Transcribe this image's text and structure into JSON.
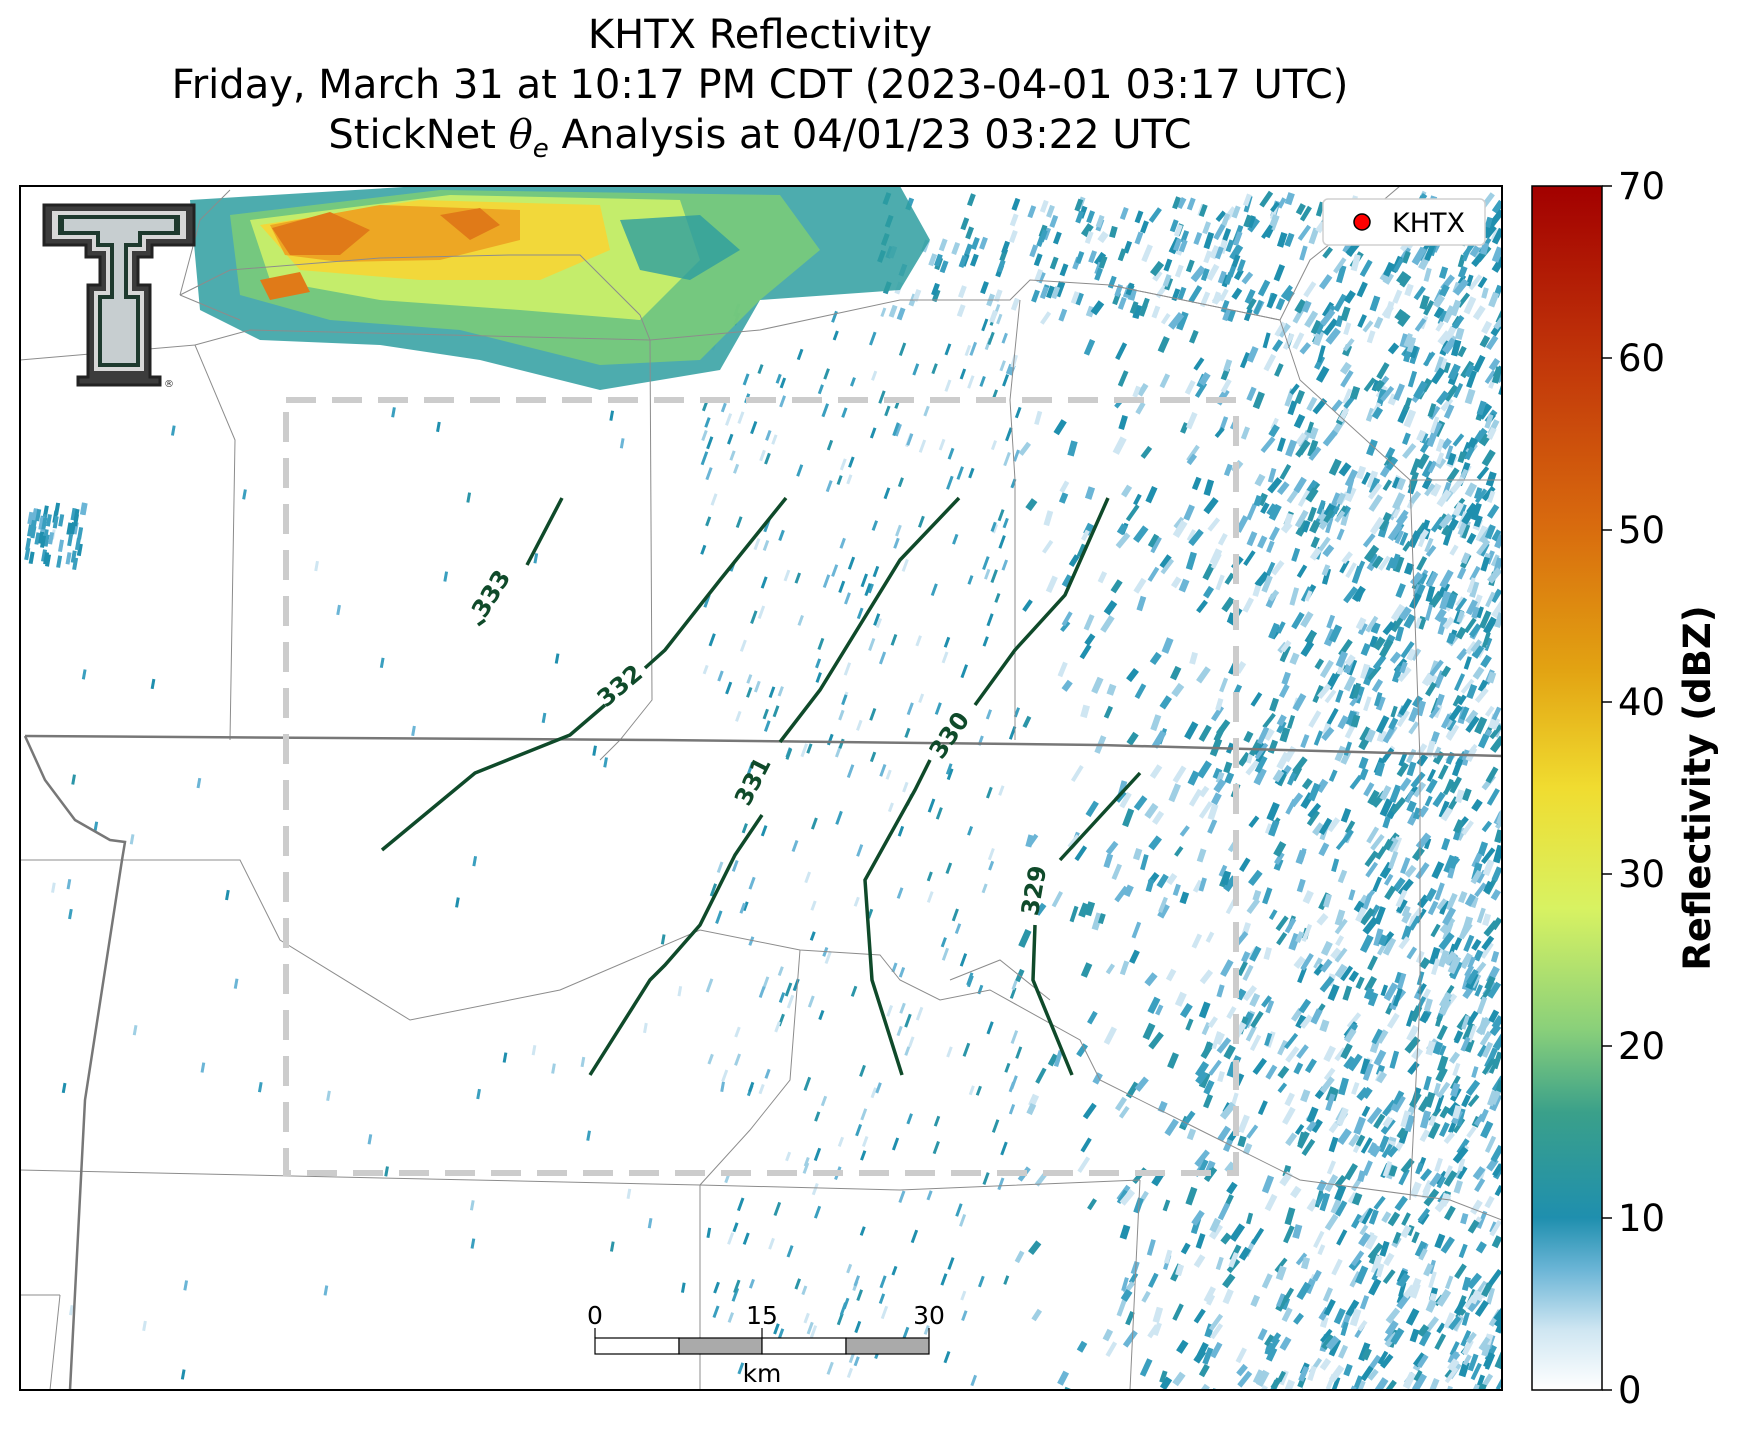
{
  "title": {
    "line1": "KHTX Reflectivity",
    "line2": "Friday, March 31 at 10:17 PM CDT (2023-04-01 03:17 UTC)",
    "line3_prefix": "StickNet ",
    "line3_symbol": "θ",
    "line3_subscript": "e",
    "line3_suffix": " Analysis at 04/01/23 03:22 UTC"
  },
  "legend": {
    "label": "KHTX",
    "marker_color": "#ff0000"
  },
  "colorbar": {
    "label": "Reflectivity (dBZ)",
    "ticks": [
      "0",
      "10",
      "20",
      "30",
      "40",
      "50",
      "60",
      "70"
    ],
    "range": [
      0,
      70
    ],
    "colors": [
      "#ffffff",
      "#6bb5d6",
      "#1f8fae",
      "#2e9e8e",
      "#7acb7a",
      "#c8ef6a",
      "#f2e94a",
      "#e8b418",
      "#e07e10",
      "#cc4a0c",
      "#a60000"
    ]
  },
  "contours": [
    {
      "label": "333",
      "value": 333
    },
    {
      "label": "332",
      "value": 332
    },
    {
      "label": "331",
      "value": 331
    },
    {
      "label": "330",
      "value": 330
    },
    {
      "label": "329",
      "value": 329
    }
  ],
  "scalebar": {
    "ticks": [
      "0",
      "15",
      "30"
    ],
    "unit": "km"
  },
  "colors": {
    "contour": "#0f4a2a",
    "analysis_box": "#cccccc",
    "borders": "#888888"
  },
  "logo": {
    "name": "texas-tech-double-t-logo"
  }
}
